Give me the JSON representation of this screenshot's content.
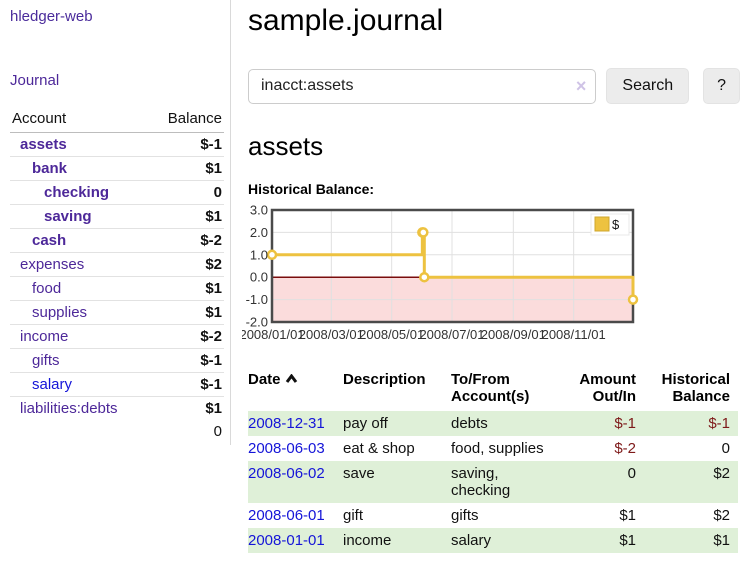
{
  "colors": {
    "link_purple": "#4d2899",
    "link_blue": "#1515d8",
    "negative_strong": "#7e1a1a",
    "negative_weak": "#c17780",
    "row_green": "#dff0d8",
    "chart_yellow": "#edc240"
  },
  "sidebar": {
    "brand": "hledger-web",
    "nav": {
      "journal": "Journal"
    },
    "accounts_table": {
      "headers": {
        "account": "Account",
        "balance": "Balance"
      },
      "rows": [
        {
          "name": "assets",
          "balance": "$-1",
          "level": 1,
          "bold": true,
          "balance_style": "neg-strong",
          "link_color": "purple"
        },
        {
          "name": "bank",
          "balance": "$1",
          "level": 2,
          "bold": true,
          "balance_style": "",
          "link_color": "purple"
        },
        {
          "name": "checking",
          "balance": "0",
          "level": 3,
          "bold": true,
          "balance_style": "",
          "link_color": "purple"
        },
        {
          "name": "saving",
          "balance": "$1",
          "level": 3,
          "bold": true,
          "balance_style": "",
          "link_color": "purple"
        },
        {
          "name": "cash",
          "balance": "$-2",
          "level": 2,
          "bold": true,
          "balance_style": "neg-strong",
          "link_color": "purple"
        },
        {
          "name": "expenses",
          "balance": "$2",
          "level": 1,
          "bold": false,
          "balance_style": "",
          "link_color": "purple"
        },
        {
          "name": "food",
          "balance": "$1",
          "level": 2,
          "bold": false,
          "balance_style": "",
          "link_color": "purple"
        },
        {
          "name": "supplies",
          "balance": "$1",
          "level": 2,
          "bold": false,
          "balance_style": "",
          "link_color": "purple"
        },
        {
          "name": "income",
          "balance": "$-2",
          "level": 1,
          "bold": false,
          "balance_style": "neg-weak",
          "link_color": "purple"
        },
        {
          "name": "gifts",
          "balance": "$-1",
          "level": 2,
          "bold": false,
          "balance_style": "neg-weak",
          "link_color": "purple"
        },
        {
          "name": "salary",
          "balance": "$-1",
          "level": 2,
          "bold": false,
          "balance_style": "neg-weak",
          "link_color": "blue"
        },
        {
          "name": "liabilities:debts",
          "balance": "$1",
          "level": 1,
          "bold": false,
          "balance_style": "",
          "link_color": "purple"
        }
      ],
      "total": "0"
    }
  },
  "header": {
    "title": "sample.journal"
  },
  "search": {
    "value": "inacct:assets",
    "clear_icon": "×",
    "search_label": "Search",
    "help_label": "?"
  },
  "account_page": {
    "heading": "assets",
    "chart_label": "Historical Balance:"
  },
  "chart_data": {
    "type": "line",
    "step": true,
    "title": "Historical Balance",
    "series": [
      {
        "name": "$",
        "color": "#edc240",
        "points": [
          [
            "2008-01-01",
            1
          ],
          [
            "2008-06-01",
            2
          ],
          [
            "2008-06-02",
            2
          ],
          [
            "2008-06-03",
            0
          ],
          [
            "2008-12-31",
            -1
          ]
        ]
      }
    ],
    "xlim": [
      "2008-01-01",
      "2008-12-31"
    ],
    "ylim": [
      -2,
      3
    ],
    "y_ticks": [
      3.0,
      2.0,
      1.0,
      0.0,
      -1.0,
      -2.0
    ],
    "x_ticks": [
      "2008/01/01",
      "2008/03/01",
      "2008/05/01",
      "2008/07/01",
      "2008/09/01",
      "2008/11/01"
    ],
    "grid": true,
    "zero_line_color": "#7a0c0c",
    "negative_region_color": "#fbdcdc",
    "legend": {
      "label": "$",
      "position": "top-right"
    }
  },
  "register_table": {
    "headers": {
      "date": "Date",
      "description": "Description",
      "accounts": "To/From\nAccount(s)",
      "amount": "Amount\nOut/In",
      "balance": "Historical\nBalance"
    },
    "sort": {
      "column": "date",
      "direction": "asc"
    },
    "rows": [
      {
        "date": "2008-12-31",
        "description": "pay off",
        "accounts": "debts",
        "amount": "$-1",
        "balance": "$-1",
        "amount_style": "neg-strong",
        "balance_style": "neg-strong"
      },
      {
        "date": "2008-06-03",
        "description": "eat & shop",
        "accounts": "food, supplies",
        "amount": "$-2",
        "balance": "0",
        "amount_style": "neg-strong",
        "balance_style": ""
      },
      {
        "date": "2008-06-02",
        "description": "save",
        "accounts": "saving,\nchecking",
        "amount": "0",
        "balance": "$2",
        "amount_style": "",
        "balance_style": ""
      },
      {
        "date": "2008-06-01",
        "description": "gift",
        "accounts": "gifts",
        "amount": "$1",
        "balance": "$2",
        "amount_style": "",
        "balance_style": ""
      },
      {
        "date": "2008-01-01",
        "description": "income",
        "accounts": "salary",
        "amount": "$1",
        "balance": "$1",
        "amount_style": "",
        "balance_style": ""
      }
    ]
  }
}
